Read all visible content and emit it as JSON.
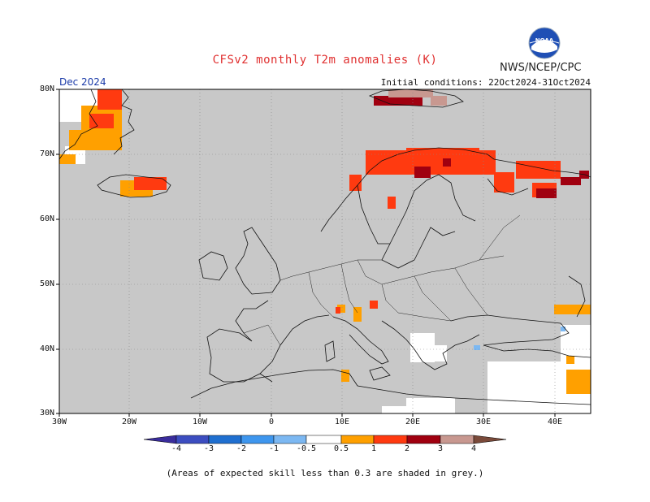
{
  "title": "CFSv2 monthly T2m anomalies (K)",
  "agency": "NWS/NCEP/CPC",
  "logo_text": "NOAA",
  "valid_month": "Dec 2024",
  "initial_conditions": "Initial conditions: 22Oct2024-31Oct2024",
  "y_ticks": [
    "80N",
    "70N",
    "60N",
    "50N",
    "40N",
    "30N"
  ],
  "x_ticks": [
    "30W",
    "20W",
    "10W",
    "0",
    "10E",
    "20E",
    "30E",
    "40E"
  ],
  "colorbar": {
    "labels": [
      "-4",
      "-3",
      "-2",
      "-1",
      "-0.5",
      "0.5",
      "1",
      "2",
      "3",
      "4"
    ],
    "colors": [
      "#3a2d9c",
      "#3c4dc0",
      "#1f6fd0",
      "#3e96ee",
      "#7cb8f2",
      "#ffffff",
      "#ffa000",
      "#ff3a10",
      "#a00010",
      "#c89890",
      "#7a4a3a"
    ]
  },
  "note": "(Areas of expected skill less than 0.3 are shaded in grey.)",
  "colors": {
    "skill_grey": "#c8c8c8",
    "title_red": "#e03030",
    "valid_blue": "#1a3aa8"
  }
}
